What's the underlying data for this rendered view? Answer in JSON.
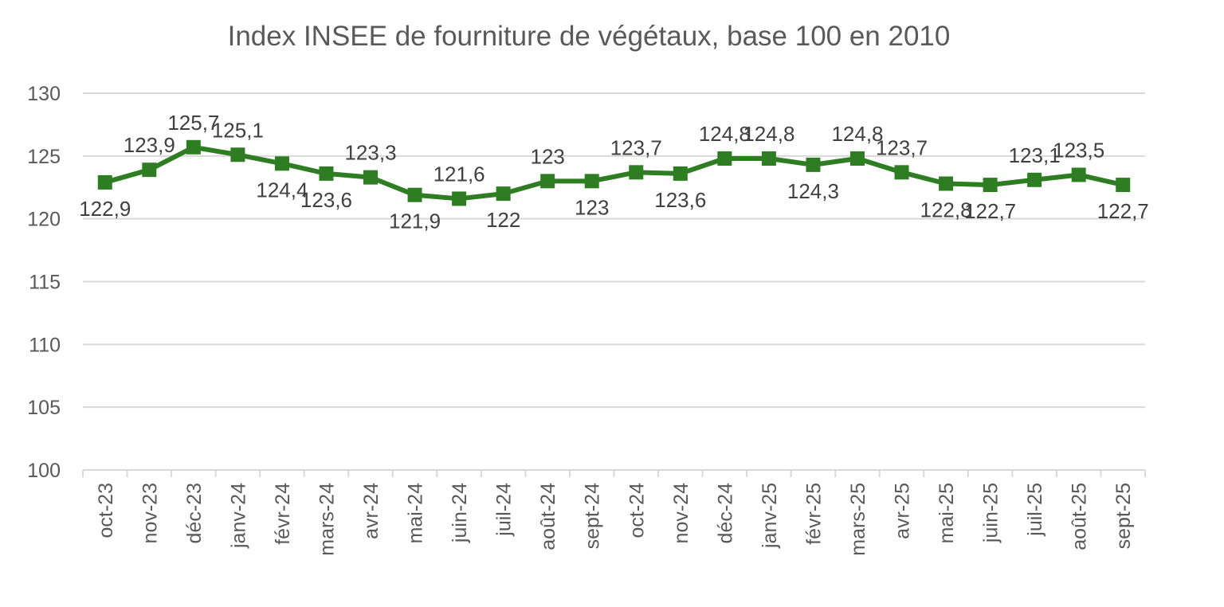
{
  "chart_data": {
    "type": "line",
    "title": "Index INSEE de fourniture de végétaux, base 100 en 2010",
    "xlabel": "",
    "ylabel": "",
    "ylim": [
      100,
      130
    ],
    "y_ticks": [
      "130",
      "125",
      "120",
      "115",
      "110",
      "105",
      "100"
    ],
    "grid": true,
    "legend": "none",
    "line_color": "#2e7d22",
    "categories": [
      "oct-23",
      "nov-23",
      "déc-23",
      "janv-24",
      "févr-24",
      "mars-24",
      "avr-24",
      "mai-24",
      "juin-24",
      "juil-24",
      "août-24",
      "sept-24",
      "oct-24",
      "nov-24",
      "déc-24",
      "janv-25",
      "févr-25",
      "mars-25",
      "avr-25",
      "mai-25",
      "juin-25",
      "juil-25",
      "août-25",
      "sept-25"
    ],
    "series": [
      {
        "values": [
          122.9,
          123.9,
          125.7,
          125.1,
          124.4,
          123.6,
          123.3,
          121.9,
          121.6,
          122,
          123,
          123,
          123.7,
          123.6,
          124.8,
          124.8,
          124.3,
          124.8,
          123.7,
          122.8,
          122.7,
          123.1,
          123.5,
          122.7
        ],
        "data_labels": [
          "122,9",
          "123,9",
          "125,7",
          "125,1",
          "124,4",
          "123,6",
          "123,3",
          "121,9",
          "121,6",
          "122",
          "123",
          "123",
          "123,7",
          "123,6",
          "124,8",
          "124,8",
          "124,3",
          "124,8",
          "123,7",
          "122,8",
          "122,7",
          "123,1",
          "123,5",
          "122,7"
        ],
        "label_positions": [
          "below",
          "above",
          "above",
          "above",
          "below",
          "below",
          "above",
          "below",
          "above",
          "below",
          "above",
          "below",
          "above",
          "below",
          "above",
          "above",
          "below",
          "above",
          "above",
          "below",
          "below",
          "above",
          "above",
          "below"
        ]
      }
    ]
  }
}
